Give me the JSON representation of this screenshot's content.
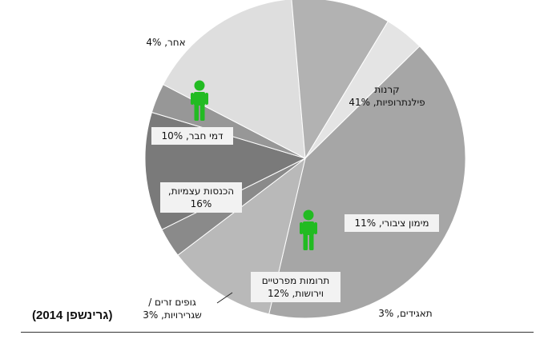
{
  "chart_data": {
    "type": "pie",
    "title": "",
    "slices": [
      {
        "label_lines": [
          "קרנות",
          "פילנתרופיות, 41%"
        ],
        "value": 41,
        "color": "#a6a6a6"
      },
      {
        "label_lines": [
          "מימון ציבורי, 11%"
        ],
        "value": 11,
        "color": "#b9b9b9"
      },
      {
        "label_lines": [
          "תאגידים, 3%"
        ],
        "value": 3,
        "color": "#8a8a8a"
      },
      {
        "label_lines": [
          "תרומות מפרטיים",
          "וירושות, 12%"
        ],
        "value": 12,
        "color": "#7a7a7a"
      },
      {
        "label_lines": [
          "גופים זרים /",
          "שגרירויות, 3%"
        ],
        "value": 3,
        "color": "#979797"
      },
      {
        "label_lines": [
          "הכנסות עצמיות,",
          "16%"
        ],
        "value": 16,
        "color": "#dedede"
      },
      {
        "label_lines": [
          "דמי חבר, 10%"
        ],
        "value": 10,
        "color": "#b2b2b2"
      },
      {
        "label_lines": [
          "אחר, 4%"
        ],
        "value": 4,
        "color": "#e4e4e4"
      }
    ],
    "icon_color": "#22bb22"
  },
  "source": "(גרינשפן 2014)"
}
